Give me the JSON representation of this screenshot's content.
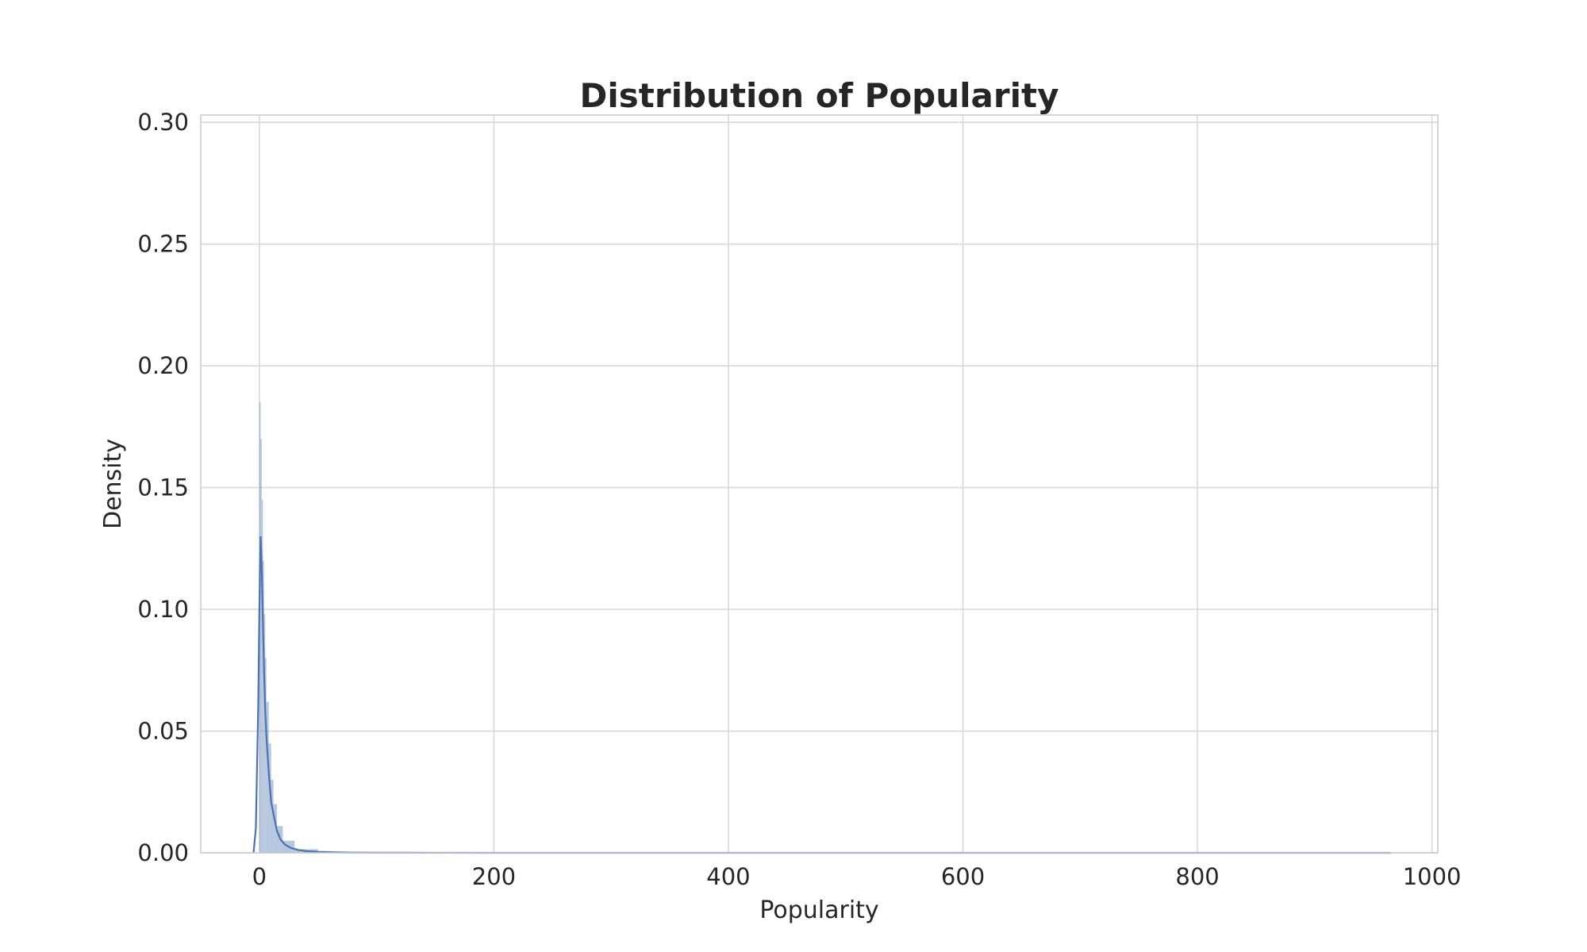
{
  "chart_data": {
    "type": "area",
    "title": "Distribution of Popularity",
    "xlabel": "Popularity",
    "ylabel": "Density",
    "xlim": [
      -50,
      1005
    ],
    "ylim": [
      0,
      0.303
    ],
    "xticks": [
      0,
      200,
      400,
      600,
      800,
      1000
    ],
    "xtick_labels": [
      "0",
      "200",
      "400",
      "600",
      "800",
      "1000"
    ],
    "yticks": [
      0.0,
      0.05,
      0.1,
      0.15,
      0.2,
      0.25,
      0.3
    ],
    "ytick_labels": [
      "0.00",
      "0.05",
      "0.10",
      "0.15",
      "0.20",
      "0.25",
      "0.30"
    ],
    "grid": true,
    "histogram": {
      "bins": [
        {
          "x0": 0,
          "x1": 1,
          "density": 0.185
        },
        {
          "x0": 1,
          "x1": 2,
          "density": 0.17
        },
        {
          "x0": 2,
          "x1": 3,
          "density": 0.145
        },
        {
          "x0": 3,
          "x1": 4,
          "density": 0.12
        },
        {
          "x0": 4,
          "x1": 5,
          "density": 0.098
        },
        {
          "x0": 5,
          "x1": 6,
          "density": 0.08
        },
        {
          "x0": 6,
          "x1": 8,
          "density": 0.062
        },
        {
          "x0": 8,
          "x1": 10,
          "density": 0.045
        },
        {
          "x0": 10,
          "x1": 12,
          "density": 0.03
        },
        {
          "x0": 12,
          "x1": 15,
          "density": 0.02
        },
        {
          "x0": 15,
          "x1": 20,
          "density": 0.011
        },
        {
          "x0": 20,
          "x1": 30,
          "density": 0.005
        },
        {
          "x0": 30,
          "x1": 50,
          "density": 0.0015
        },
        {
          "x0": 50,
          "x1": 100,
          "density": 0.0004
        }
      ],
      "color": "#4c72b0",
      "alpha": 0.4
    },
    "kde": {
      "x": [
        -5,
        -3,
        -1,
        0,
        1,
        2,
        3,
        4,
        5,
        6,
        8,
        10,
        12,
        15,
        18,
        22,
        27,
        33,
        40,
        50,
        65,
        80,
        100,
        150,
        200,
        400,
        600,
        800,
        965
      ],
      "y": [
        0.0,
        0.01,
        0.06,
        0.1,
        0.13,
        0.118,
        0.095,
        0.075,
        0.058,
        0.048,
        0.033,
        0.021,
        0.016,
        0.009,
        0.0055,
        0.0033,
        0.002,
        0.0012,
        0.0007,
        0.0004,
        0.0002,
        0.0001,
        5e-05,
        2e-05,
        1e-05,
        0.0,
        0.0,
        0.0,
        0.0
      ],
      "color": "#4c72b0"
    }
  }
}
